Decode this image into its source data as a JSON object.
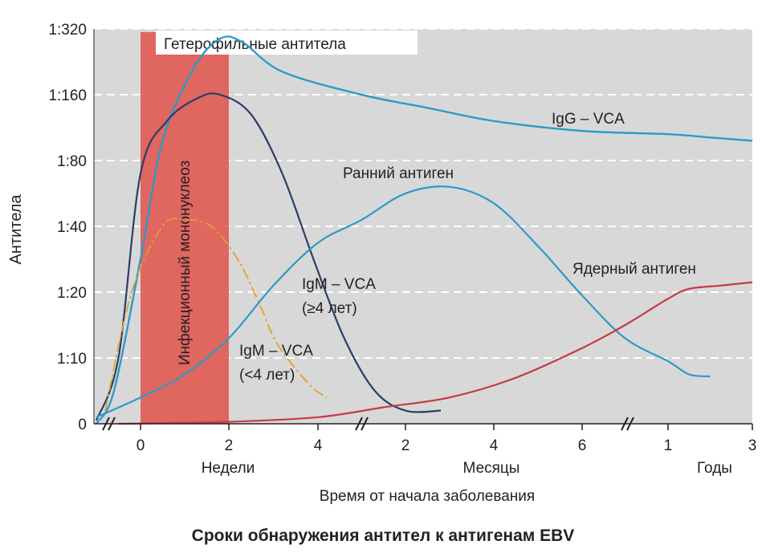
{
  "caption": "Сроки обнаружения антител к антигенам EBV",
  "chart_data": {
    "type": "line",
    "title": "",
    "ylabel": "Антитела",
    "xlabel": "Время от начала заболевания",
    "y_ticks": [
      "0",
      "1:10",
      "1:20",
      "1:40",
      "1:80",
      "1:160",
      "1:320"
    ],
    "x_segments": [
      {
        "unit": "Недели",
        "ticks": [
          "0",
          "2",
          "4"
        ]
      },
      {
        "unit": "Месяцы",
        "ticks": [
          "2",
          "4",
          "6"
        ]
      },
      {
        "unit": "Годы",
        "ticks": [
          "1",
          "3"
        ]
      }
    ],
    "shaded_band": {
      "label": "Инфекционный мононуклеоз",
      "color": "#e0605a"
    },
    "header_label": "Гетерофильные антитела",
    "series": [
      {
        "name": "Гетерофильные антитела",
        "color": "#2a9bc7",
        "label": "",
        "points": [
          [
            -1.0,
            0.0
          ],
          [
            -0.6,
            0.5
          ],
          [
            0,
            2.5
          ],
          [
            0.5,
            4.3
          ],
          [
            1.2,
            5.4
          ],
          [
            1.8,
            5.85
          ],
          [
            2.3,
            5.8
          ],
          [
            3.2,
            5.35
          ],
          [
            5,
            5.0
          ],
          [
            6.5,
            4.8
          ],
          [
            8,
            4.6
          ],
          [
            10,
            4.45
          ],
          [
            12,
            4.4
          ],
          [
            14,
            4.35
          ],
          [
            16,
            4.3
          ]
        ]
      },
      {
        "name": "IgG – VCA",
        "color": "#2a9bc7",
        "label": "IgG – VCA",
        "points": [
          [
            -1.0,
            0.0
          ],
          [
            -0.6,
            0.5
          ],
          [
            0,
            2.5
          ],
          [
            0.5,
            4.3
          ],
          [
            1.2,
            5.4
          ],
          [
            1.8,
            5.85
          ],
          [
            2.3,
            5.8
          ],
          [
            3.2,
            5.35
          ],
          [
            5,
            5.0
          ],
          [
            6.5,
            4.8
          ],
          [
            8,
            4.6
          ],
          [
            10,
            4.45
          ],
          [
            12,
            4.4
          ],
          [
            14,
            4.35
          ],
          [
            16,
            4.3
          ]
        ]
      },
      {
        "name": "IgM – VCA (≥4 лет)",
        "color": "#2a3f66",
        "label": "IgM – VCA (≥4 лет)",
        "points": [
          [
            -1.0,
            0.05
          ],
          [
            -0.5,
            1.0
          ],
          [
            0,
            3.8
          ],
          [
            0.6,
            4.6
          ],
          [
            1.3,
            4.95
          ],
          [
            1.8,
            5.0
          ],
          [
            2.5,
            4.7
          ],
          [
            3.2,
            3.8
          ],
          [
            3.9,
            2.5
          ],
          [
            4.6,
            1.3
          ],
          [
            5.3,
            0.5
          ],
          [
            6.0,
            0.2
          ],
          [
            6.8,
            0.2
          ]
        ]
      },
      {
        "name": "IgM – VCA (<4 лет)",
        "color": "#e0a12f",
        "label": "IgM – VCA (<4 лет)",
        "points": [
          [
            -0.8,
            0.2
          ],
          [
            -0.2,
            2.0
          ],
          [
            0.5,
            3.0
          ],
          [
            1.0,
            3.1
          ],
          [
            1.6,
            3.0
          ],
          [
            2.2,
            2.5
          ],
          [
            2.7,
            1.8
          ],
          [
            3.1,
            1.2
          ],
          [
            3.8,
            0.6
          ],
          [
            4.2,
            0.4
          ]
        ]
      },
      {
        "name": "Ранний антиген",
        "color": "#2a9bc7",
        "label": "Ранний антиген",
        "points": [
          [
            -1.0,
            0.1
          ],
          [
            0,
            0.4
          ],
          [
            1,
            0.75
          ],
          [
            2,
            1.3
          ],
          [
            3,
            2.1
          ],
          [
            4,
            2.75
          ],
          [
            5,
            3.1
          ],
          [
            6,
            3.5
          ],
          [
            7,
            3.6
          ],
          [
            8,
            3.35
          ],
          [
            9,
            2.7
          ],
          [
            10,
            1.95
          ],
          [
            11,
            1.3
          ],
          [
            12,
            0.95
          ],
          [
            13,
            0.75
          ],
          [
            14,
            0.72
          ]
        ]
      },
      {
        "name": "Ядерный антиген",
        "color": "#c43a48",
        "label": "Ядерный антиген",
        "points": [
          [
            -0.5,
            0.0
          ],
          [
            2,
            0.03
          ],
          [
            4,
            0.1
          ],
          [
            5.5,
            0.25
          ],
          [
            7,
            0.4
          ],
          [
            8.5,
            0.7
          ],
          [
            10,
            1.15
          ],
          [
            11,
            1.5
          ],
          [
            12,
            1.9
          ],
          [
            13,
            2.05
          ],
          [
            14.5,
            2.1
          ],
          [
            16,
            2.15
          ]
        ]
      }
    ]
  }
}
